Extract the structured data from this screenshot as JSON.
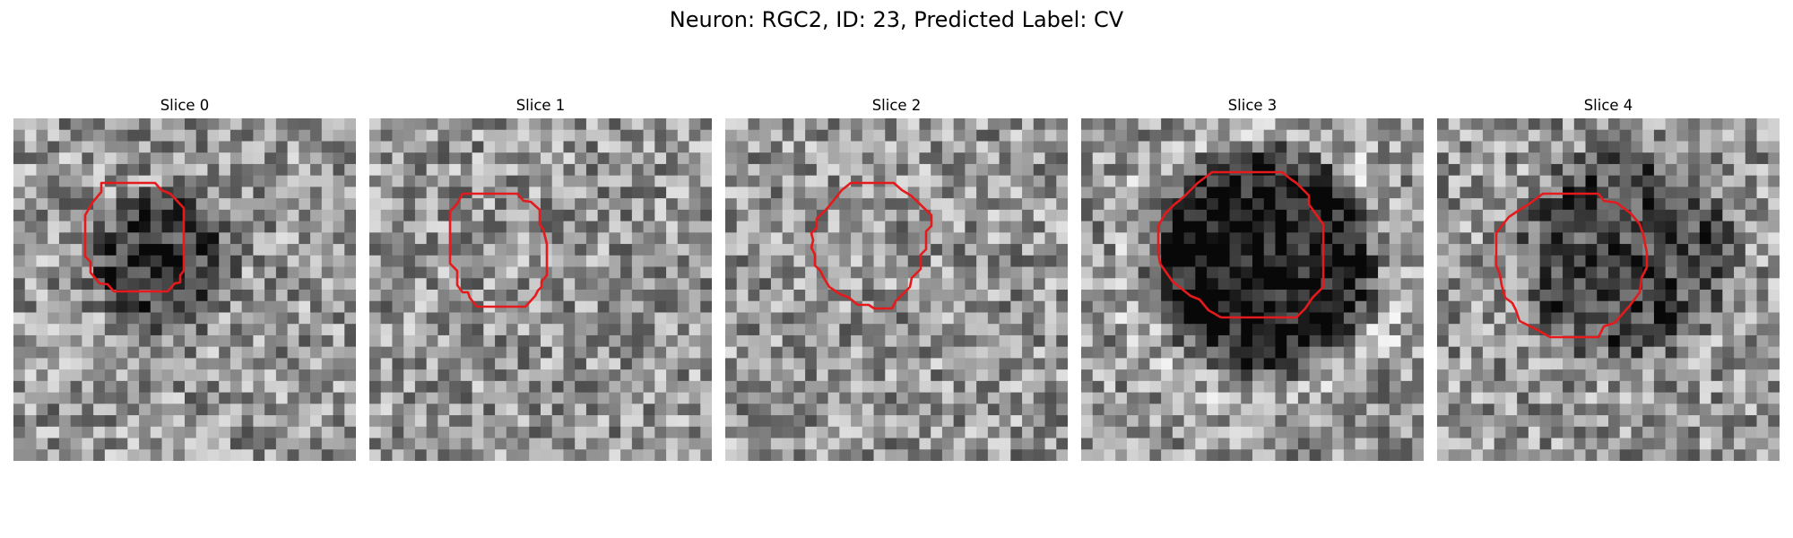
{
  "figure": {
    "title": "Neuron: RGC2, ID: 23, Predicted Label: CV"
  },
  "panels": [
    {
      "title": "Slice 0",
      "contour_color": "#e41a1c",
      "dark_blob": true
    },
    {
      "title": "Slice 1",
      "contour_color": "#e41a1c",
      "dark_blob": false
    },
    {
      "title": "Slice 2",
      "contour_color": "#e41a1c",
      "dark_blob": false
    },
    {
      "title": "Slice 3",
      "contour_color": "#e41a1c",
      "dark_blob": true
    },
    {
      "title": "Slice 4",
      "contour_color": "#e41a1c",
      "dark_blob": true
    }
  ],
  "colors": {
    "background": "#ffffff",
    "contour": "#e41a1c",
    "colormap": "grayscale"
  }
}
